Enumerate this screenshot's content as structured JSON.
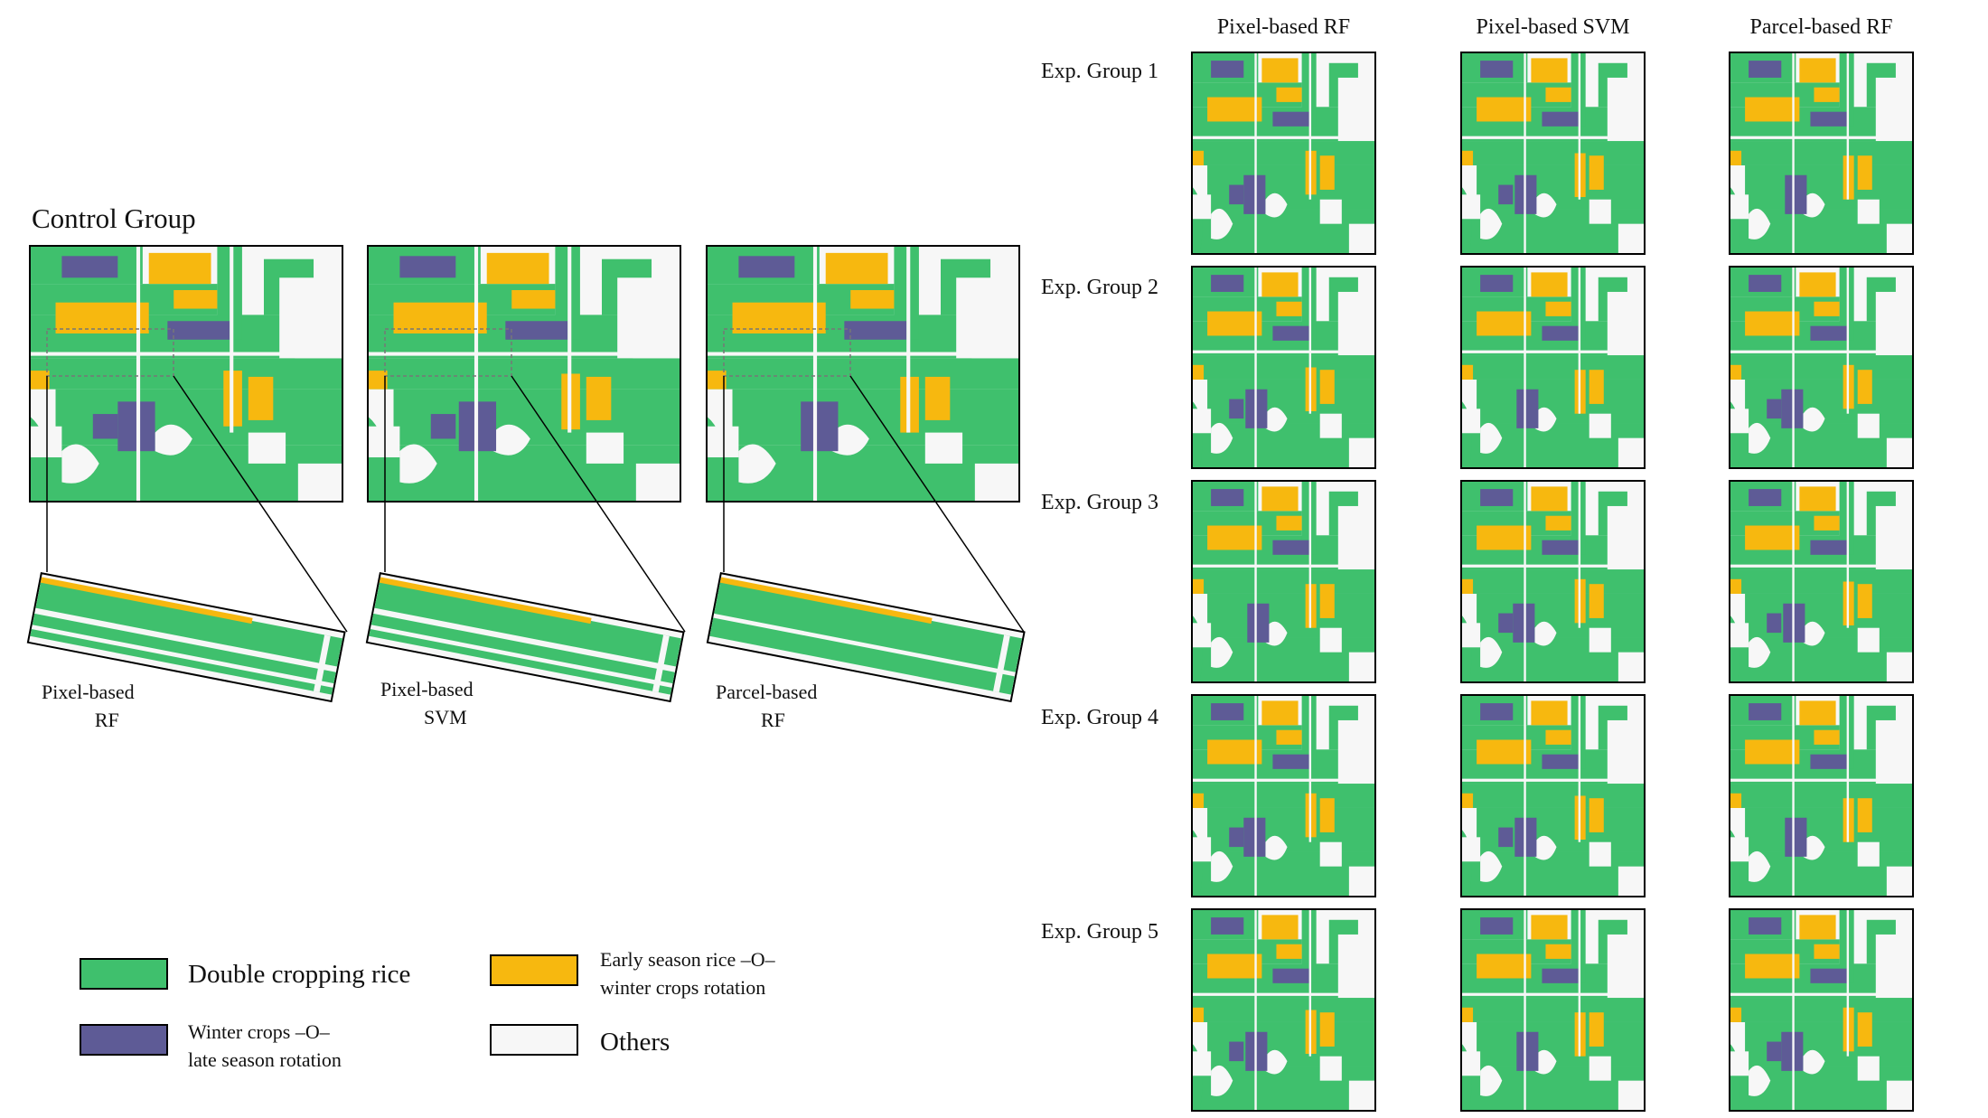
{
  "colors": {
    "double_cropping_rice": "#3fc06d",
    "winter_crops_late_season": "#5e5b96",
    "early_season_rice_winter": "#f7b80f",
    "others": "#f7f7f7"
  },
  "control_group": {
    "title": "Control Group",
    "panels": [
      {
        "caption_line1": "Pixel-based",
        "caption_line2": "RF"
      },
      {
        "caption_line1": "Pixel-based",
        "caption_line2": "SVM"
      },
      {
        "caption_line1": "Parcel-based",
        "caption_line2": "RF"
      }
    ]
  },
  "experiment": {
    "columns": [
      "Pixel-based RF",
      "Pixel-based SVM",
      "Parcel-based RF"
    ],
    "rows": [
      "Exp. Group 1",
      "Exp. Group 2",
      "Exp. Group 3",
      "Exp. Group 4",
      "Exp. Group 5"
    ]
  },
  "legend": {
    "items": [
      {
        "key": "double_cropping_rice",
        "line1": "Double cropping rice",
        "line2": ""
      },
      {
        "key": "early_season_rice_winter",
        "line1": "Early season rice –O–",
        "line2": "winter crops rotation"
      },
      {
        "key": "winter_crops_late_season",
        "line1": "Winter crops –O–",
        "line2": "late season rotation"
      },
      {
        "key": "others",
        "line1": "Others",
        "line2": ""
      }
    ]
  }
}
